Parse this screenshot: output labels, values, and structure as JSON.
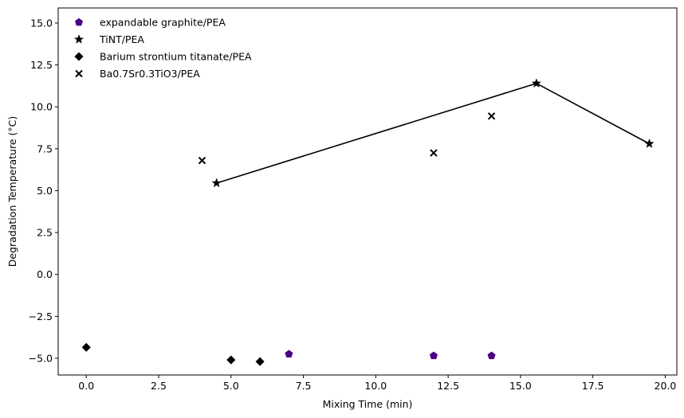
{
  "chart_data": {
    "type": "scatter",
    "title": "",
    "xlabel": "Mixing Time (min)",
    "ylabel": "Degradation Temperature (°C)",
    "xlim": [
      -0.97,
      20.4
    ],
    "ylim": [
      -6.0,
      15.9
    ],
    "xticks": [
      0.0,
      2.5,
      5.0,
      7.5,
      10.0,
      12.5,
      15.0,
      17.5,
      20.0
    ],
    "xtick_labels": [
      "0.0",
      "2.5",
      "5.0",
      "7.5",
      "10.0",
      "12.5",
      "15.0",
      "17.5",
      "20.0"
    ],
    "yticks": [
      -5.0,
      -2.5,
      0.0,
      2.5,
      5.0,
      7.5,
      10.0,
      12.5,
      15.0
    ],
    "ytick_labels": [
      "−5.0",
      "−2.5",
      "0.0",
      "2.5",
      "5.0",
      "7.5",
      "10.0",
      "12.5",
      "15.0"
    ],
    "grid": false,
    "legend_position": "top-left",
    "series": [
      {
        "name": "expandable graphite/PEA",
        "marker": "pentagon",
        "color": "#4b0082",
        "line": false,
        "x": [
          7.0,
          12.0,
          14.0
        ],
        "y": [
          -4.75,
          -4.85,
          -4.85
        ]
      },
      {
        "name": "TiNT/PEA",
        "marker": "star",
        "color": "#000000",
        "line": true,
        "x": [
          4.5,
          15.55,
          19.45
        ],
        "y": [
          5.45,
          11.4,
          7.8
        ]
      },
      {
        "name": "Barium strontium titanate/PEA",
        "marker": "diamond",
        "color": "#000000",
        "line": false,
        "x": [
          0.0,
          5.0,
          6.0
        ],
        "y": [
          -4.35,
          -5.1,
          -5.2
        ]
      },
      {
        "name": "Ba0.7Sr0.3TiO3/PEA",
        "marker": "x",
        "color": "#000000",
        "line": false,
        "x": [
          4.0,
          12.0,
          14.0
        ],
        "y": [
          6.8,
          7.25,
          9.45
        ]
      }
    ]
  }
}
